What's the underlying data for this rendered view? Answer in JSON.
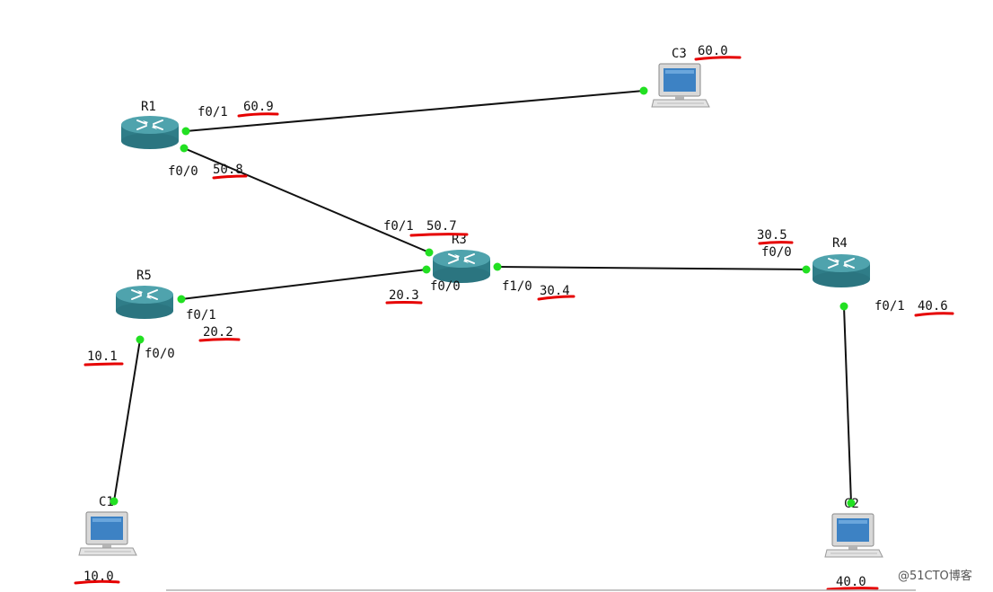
{
  "devices": {
    "R1": "R1",
    "R3": "R3",
    "R4": "R4",
    "R5": "R5",
    "C1": "C1",
    "C2": "C2",
    "C3": "C3"
  },
  "ports": {
    "r1_f01": "f0/1",
    "r1_f00": "f0/0",
    "r3_f01": "f0/1",
    "r3_f00": "f0/0",
    "r3_f10": "f1/0",
    "r4_f00": "f0/0",
    "r4_f01": "f0/1",
    "r5_f01": "f0/1",
    "r5_f00": "f0/0"
  },
  "addresses": {
    "c3": "60.0",
    "r1_f01": "60.9",
    "r1_f00": "50.8",
    "r3_f01": "50.7",
    "r3_f00": "20.3",
    "r3_f10": "30.4",
    "r4_f00": "30.5",
    "r4_f01": "40.6",
    "r5_f01": "20.2",
    "r5_f00": "10.1",
    "c1": "10.0",
    "c2": "40.0"
  },
  "watermark": "@51CTO博客",
  "colors": {
    "link": "#111111",
    "port": "#22e022",
    "annotation": "#e60000",
    "router_top": "#4fa3ad",
    "router_side": "#2f7d88"
  },
  "icons": {
    "router": "router-icon",
    "computer": "computer-icon"
  }
}
